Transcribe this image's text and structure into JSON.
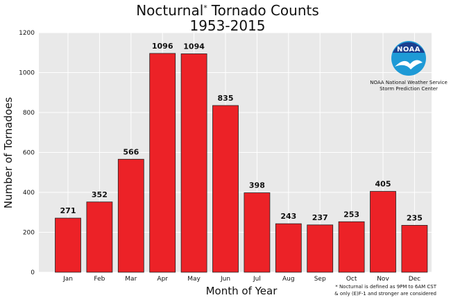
{
  "chart_data": {
    "type": "bar",
    "title_word": "Nocturnal",
    "title_mark": "*",
    "title_rest": "Tornado Counts",
    "subtitle": "1953-2015",
    "xlabel": "Month of Year",
    "ylabel": "Number of Tornadoes",
    "categories": [
      "Jan",
      "Feb",
      "Mar",
      "Apr",
      "May",
      "Jun",
      "Jul",
      "Aug",
      "Sep",
      "Oct",
      "Nov",
      "Dec"
    ],
    "values": [
      271,
      352,
      566,
      1096,
      1094,
      835,
      398,
      243,
      237,
      253,
      405,
      235
    ],
    "data_labels": [
      "271",
      "352",
      "566",
      "1096",
      "1094",
      "835",
      "398",
      "243",
      "237",
      "253",
      "405",
      "235"
    ],
    "ylim": [
      0,
      1200
    ],
    "yticks": [
      0,
      200,
      400,
      600,
      800,
      1000,
      1200
    ],
    "ytick_labels": [
      "0",
      "200",
      "400",
      "600",
      "800",
      "1000",
      "1200"
    ],
    "grid": true,
    "bar_color": "#ec2227",
    "plot_background": "#e9e9e9"
  },
  "logo": {
    "acronym": "NOAA",
    "line1": "NOAA National Weather Service",
    "line2": "Storm Prediction Center"
  },
  "footnote": {
    "line1": "* Nocturnal is defined as 9PM to 6AM CST",
    "line2": "& only (E)F-1 and stronger are considered"
  }
}
